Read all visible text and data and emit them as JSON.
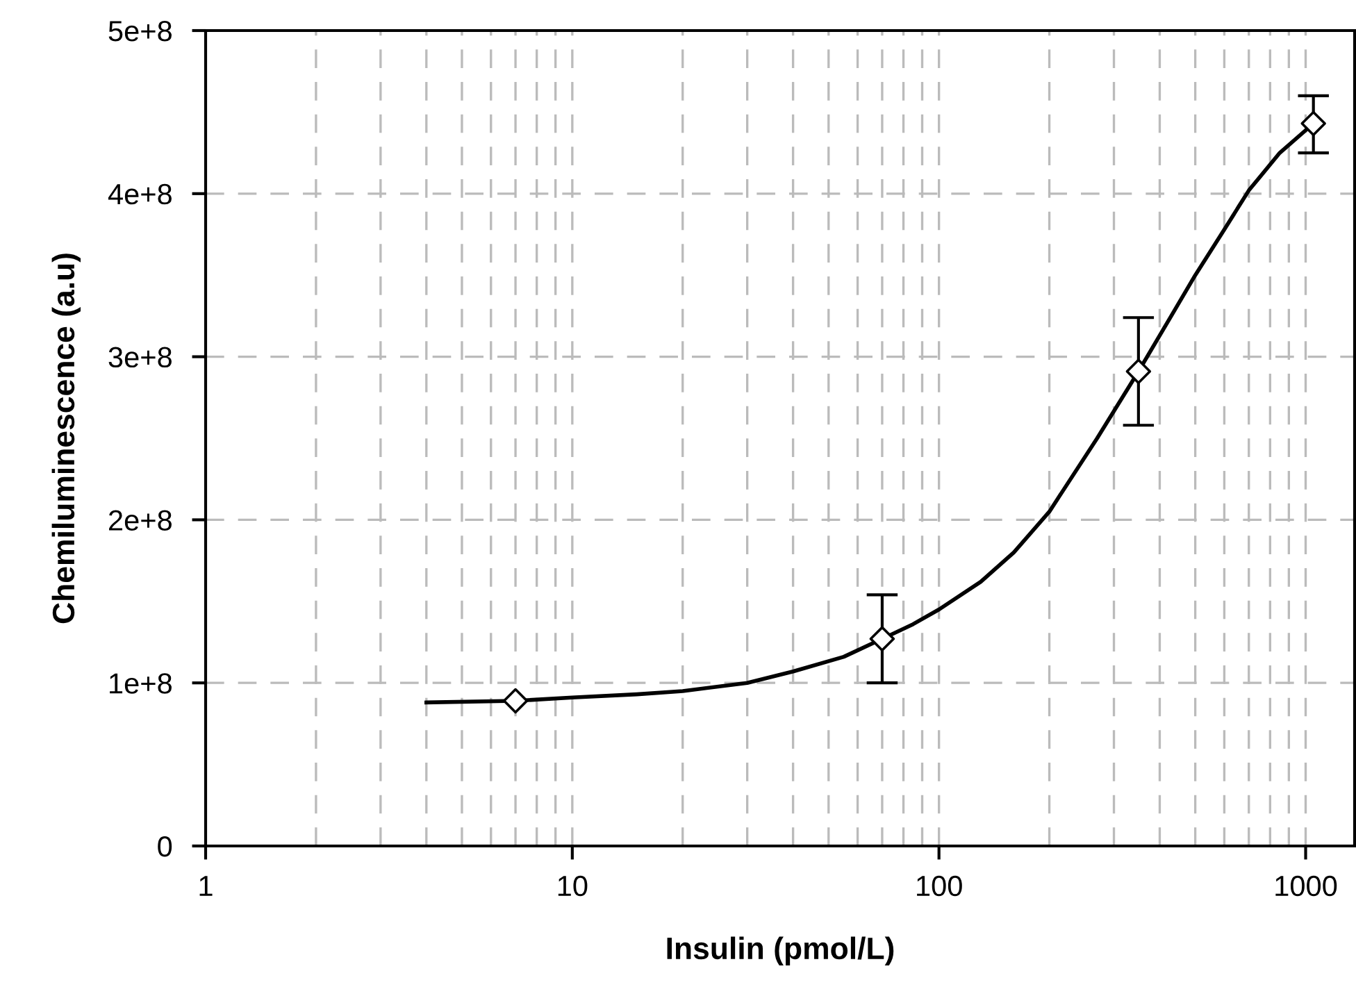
{
  "chart_data": {
    "type": "scatter",
    "xlabel": "Insulin (pmol/L)",
    "ylabel": "Chemiluminescence (a.u)",
    "log": "x",
    "grid": true,
    "xlim": [
      1,
      1360
    ],
    "xticks": [
      1,
      10,
      100,
      1000
    ],
    "ylim": [
      0,
      500000000
    ],
    "yticks": [
      {
        "value": 0,
        "label": "0"
      },
      {
        "value": 100000000,
        "label": "1e+8"
      },
      {
        "value": 200000000,
        "label": "2e+8"
      },
      {
        "value": 300000000,
        "label": "3e+8"
      },
      {
        "value": 400000000,
        "label": "4e+8"
      },
      {
        "value": 500000000,
        "label": "5e+8"
      }
    ],
    "series": [
      {
        "type": "line",
        "color": "#000000",
        "marker": "none",
        "line_style": "solid",
        "x": [
          4,
          7,
          10,
          15,
          20,
          30,
          40,
          55,
          70,
          85,
          100,
          130,
          160,
          200,
          270,
          350,
          430,
          500,
          600,
          700,
          850,
          1050
        ],
        "values": [
          88000000,
          89000000,
          91000000,
          93000000,
          95000000,
          100000000,
          107000000,
          116000000,
          127000000,
          136000000,
          145000000,
          162000000,
          180000000,
          205000000,
          250000000,
          291000000,
          325000000,
          350000000,
          378000000,
          402000000,
          425000000,
          443000000
        ]
      },
      {
        "color": "#000000",
        "marker": "diamond",
        "x": [
          7,
          70,
          350,
          1050
        ],
        "values": [
          89000000,
          127000000,
          291000000,
          443000000
        ],
        "errors": [
          null,
          [
            100000000,
            154000000
          ],
          [
            258000000,
            324000000
          ],
          [
            425000000,
            460000000
          ]
        ]
      }
    ]
  }
}
